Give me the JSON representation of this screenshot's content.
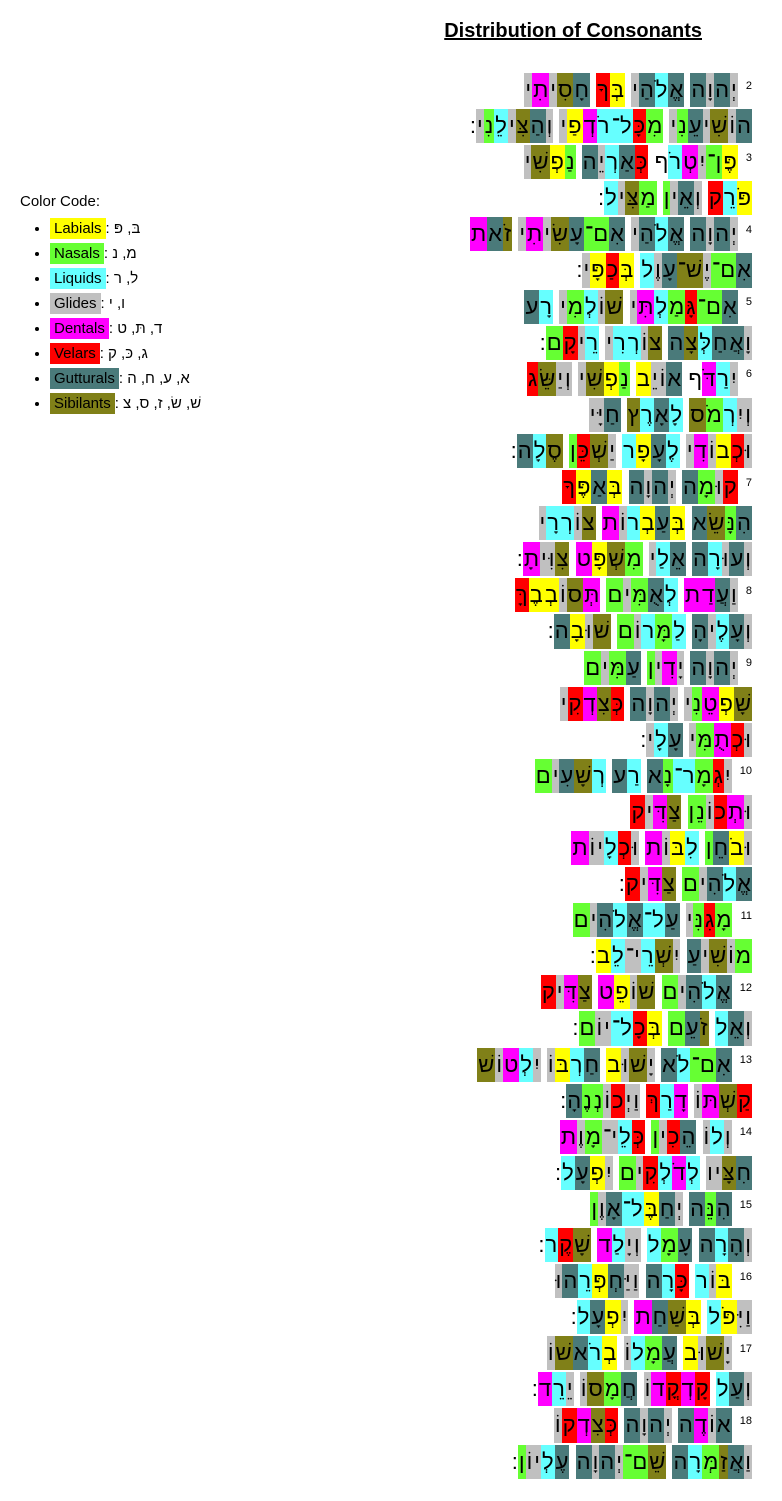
{
  "title": "Distribution of Consonants",
  "legend": {
    "heading": "Color Code:",
    "items": [
      {
        "label": "Labials",
        "letters": "בּ, פּ",
        "color": "#ffff00",
        "textcolor": "#000000"
      },
      {
        "label": "Nasals",
        "letters": "מ, נ",
        "color": "#66ff33",
        "textcolor": "#000000"
      },
      {
        "label": "Liquids",
        "letters": "ל, ר",
        "color": "#66ffff",
        "textcolor": "#000000"
      },
      {
        "label": "Glides",
        "letters": "ו, י",
        "color": "#c0c0c0",
        "textcolor": "#000000"
      },
      {
        "label": "Dentals",
        "letters": "ד, תּ, ט",
        "color": "#ff00ff",
        "textcolor": "#000000"
      },
      {
        "label": "Velars",
        "letters": "ג, כּ, ק",
        "color": "#ff0000",
        "textcolor": "#000000"
      },
      {
        "label": "Gutturals",
        "letters": "א, ע, ח, ה",
        "color": "#4a7a7a",
        "textcolor": "#000000"
      },
      {
        "label": "Sibilants",
        "letters": "שׁ, שׂ, ז, ס, צ",
        "color": "#808018",
        "textcolor": "#000000"
      }
    ]
  },
  "colors": {
    "labial": "#ffff00",
    "nasal": "#66ff33",
    "liquid": "#66ffff",
    "glide": "#c0c0c0",
    "dental": "#ff00ff",
    "velar": "#ff0000",
    "guttural": "#4a7a7a",
    "sibilant": "#808018",
    "background": "#ffffff"
  },
  "typography": {
    "title_fontsize": 20,
    "legend_fontsize": 15,
    "hebrew_fontsize": 22,
    "verse_num_fontsize": 11
  },
  "verses": [
    {
      "num": "2",
      "lines": [
        "יְהוָה אֱלֹהַי בְּךָ חָסִיתִי",
        "הוֹשִׁיעֵנִי מִכָּל־רֹדְפַי וְהַצִּילֵנִי:"
      ]
    },
    {
      "num": "3",
      "lines": [
        "פֶּן־יִטְרֹף כְּאַרְיֵה נַפְשִׁי",
        "פֹּרֵק וְאֵין מַצִּיל:"
      ]
    },
    {
      "num": "4",
      "lines": [
        "יְהוָה אֱלֹהַי אִם־עָשִׂיתִי זֹאת",
        "אִם־יֶשׁ־עָוֶל בְּכַפָּי:"
      ]
    },
    {
      "num": "5",
      "lines": [
        "אִם־גָּמַלְתִּי שׁוֹלְמִי רָע",
        "וָאֲחַלְּצָה צוֹרְרִי רֵיקָם:"
      ]
    },
    {
      "num": "6",
      "lines": [
        "יִרַדֹּף אוֹיֵב נַפְשִׁי וְיַשֵּׂג",
        "וְיִרְמֹס לָאָרֶץ חַיָּי",
        "וּכְבוֹדִי לֶעָפָר יַשְׁכֵּן סֶלָה:"
      ]
    },
    {
      "num": "7",
      "lines": [
        "קוּמָה יְהוָה בְּאַפֶּךָ",
        "הִנָּשֵׂא בְּעַבְרוֹת צוֹרְרָי",
        "וְעוּרָה אֵלַי מִשְׁפָּט צִוִּיתָ:"
      ]
    },
    {
      "num": "8",
      "lines": [
        "וַעֲדַת לְאֻמִּים תְּסוֹבְבֶךָּ",
        "וְעָלֶיהָ לַמָּרוֹם שׁוּבָה:"
      ]
    },
    {
      "num": "9",
      "lines": [
        "יְהוָה יָדִין עַמִּים",
        "שָׁפְטֵנִי יְהוָה כְּצִדְקִי",
        "וּכְתֻמִּי עָלָי:"
      ]
    },
    {
      "num": "10",
      "lines": [
        "יִגְמָר־נָא רַע רְשָׁעִים",
        "וּתְכוֹנֵן צַדִּיק",
        "וּבֹחֵן לִבּוֹת וּכְלָיוֹת",
        "אֱלֹהִים צַדִּיק:"
      ]
    },
    {
      "num": "11",
      "lines": [
        "מָגִנִּי עַל־אֱלֹהִים",
        "מוֹשִׁיעַ יִשְׁרֵי־לֵב:"
      ]
    },
    {
      "num": "12",
      "lines": [
        "אֱלֹהִים שׁוֹפֵט צַדִּיק",
        "וְאֵל זֹעֵם בְּכָל־יוֹם:"
      ]
    },
    {
      "num": "13",
      "lines": [
        "אִם־לֹא יָשׁוּב חַרְבּוֹ יִלְטוֹשׁ",
        "קַשְׁתּוֹ דָרַךְ וַיְכוֹנְנֶהָ:"
      ]
    },
    {
      "num": "14",
      "lines": [
        "וְלוֹ הֵכִין כְּלֵי־מָוֶת",
        "חִצָּיו לְדֹלְקִים יִפְעָל:"
      ]
    },
    {
      "num": "15",
      "lines": [
        "הִנֵּה יְחַבֶּל־אָוֶן",
        "וְהָרָה עָמָל וְיָלַד שָׁקֶר:"
      ]
    },
    {
      "num": "16",
      "lines": [
        "בּוֹר כָּרָה וַיַּחְפְּרֵהוּ",
        "וַיִּפֹּל בְּשַׁחַת יִפְעָל:"
      ]
    },
    {
      "num": "17",
      "lines": [
        "יָשׁוּב עֲמָלוֹ בְרֹאשׁוֹ",
        "וְעַל קָדְקֳדוֹ חֲמָסוֹ יֵרֵד:"
      ]
    },
    {
      "num": "18",
      "lines": [
        "אוֹדֶה יְהוָה כְּצִדְקוֹ",
        "וַאֲזַמְּרָה שֵׁם־יְהוָה עֶלְיוֹן:"
      ]
    }
  ],
  "consonant_map": {
    "ב": "labial",
    "פ": "labial",
    "מ": "nasal",
    "ם": "nasal",
    "נ": "nasal",
    "ן": "nasal",
    "ל": "liquid",
    "ר": "liquid",
    "ו": "glide",
    "י": "glide",
    "ד": "dental",
    "ת": "dental",
    "ט": "dental",
    "ג": "velar",
    "כ": "velar",
    "ך": "velar",
    "ק": "velar",
    "א": "guttural",
    "ע": "guttural",
    "ח": "guttural",
    "ה": "guttural",
    "ש": "sibilant",
    "ז": "sibilant",
    "ס": "sibilant",
    "צ": "sibilant",
    "ץ": "sibilant"
  }
}
